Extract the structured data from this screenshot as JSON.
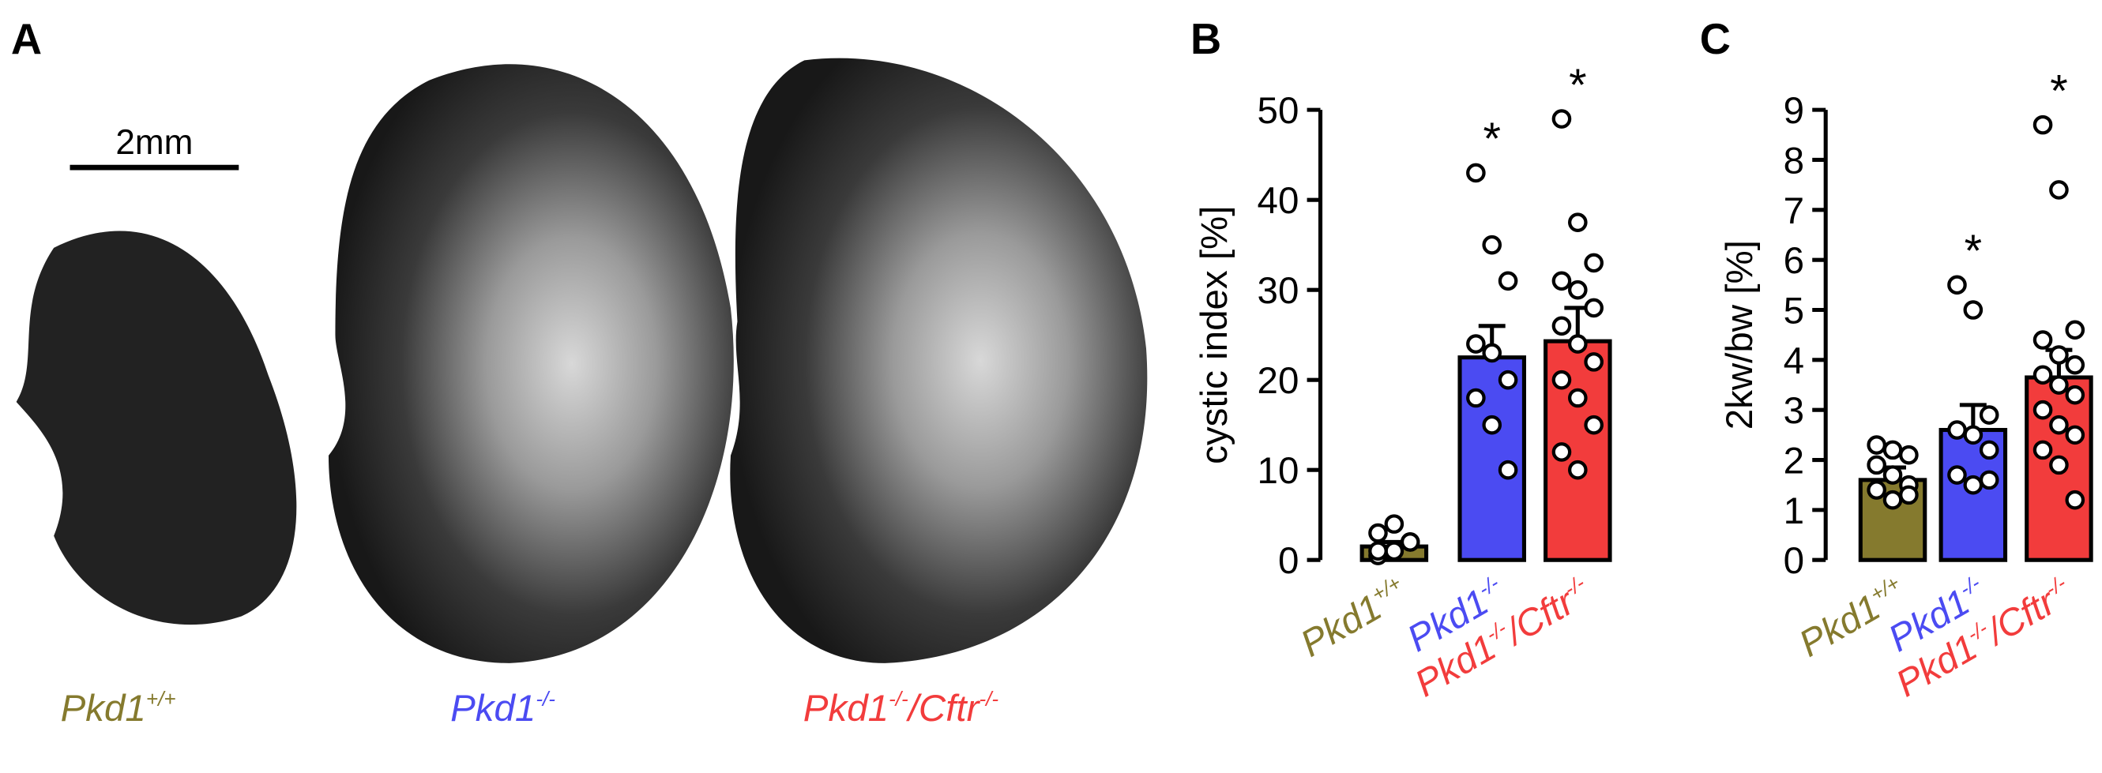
{
  "panel_labels": [
    "A",
    "B",
    "C"
  ],
  "scale_bar": "2mm",
  "chart_data": [
    {
      "type": "bar",
      "ylabel": "cystic index [%]",
      "categories": [
        [
          "Pkd1",
          "+/+"
        ],
        [
          "Pkd1",
          "-/-"
        ],
        [
          "Pkd1",
          "-/-",
          "/Cftr",
          "-/-"
        ]
      ],
      "colors": [
        "#857a2e",
        "#4b4bf2",
        "#f23c3c"
      ],
      "values": [
        1.5,
        22.5,
        24.3
      ],
      "errors": [
        0.5,
        3.5,
        3.7
      ],
      "points": [
        [
          0.5,
          1,
          2,
          3,
          4,
          2,
          1
        ],
        [
          43,
          35,
          31,
          24,
          23,
          20,
          18,
          15,
          10
        ],
        [
          49,
          37.5,
          33,
          31,
          30,
          28,
          26,
          24,
          22,
          20,
          18,
          15,
          12,
          10
        ]
      ],
      "significance": [
        null,
        "*",
        "*"
      ],
      "ylim": [
        0,
        50
      ],
      "yticks": [
        0,
        10,
        20,
        30,
        40,
        50
      ]
    },
    {
      "type": "bar",
      "ylabel": "2kw/bw [%]",
      "categories": [
        [
          "Pkd1",
          "+/+"
        ],
        [
          "Pkd1",
          "-/-"
        ],
        [
          "Pkd1",
          "-/-",
          "/Cftr",
          "-/-"
        ]
      ],
      "colors": [
        "#857a2e",
        "#4b4bf2",
        "#f23c3c"
      ],
      "values": [
        1.6,
        2.6,
        3.65
      ],
      "errors": [
        0.25,
        0.5,
        0.55
      ],
      "points": [
        [
          2.3,
          2.2,
          2.1,
          1.9,
          1.7,
          1.5,
          1.4,
          1.2,
          1.3
        ],
        [
          5.5,
          5.0,
          2.9,
          2.6,
          2.5,
          2.2,
          1.7,
          1.5,
          1.6
        ],
        [
          8.7,
          7.4,
          4.6,
          4.4,
          4.1,
          3.9,
          3.7,
          3.5,
          3.3,
          3.0,
          2.7,
          2.5,
          2.2,
          1.9,
          1.2
        ]
      ],
      "significance": [
        null,
        "*",
        "*"
      ],
      "ylim": [
        0,
        9
      ],
      "yticks": [
        0,
        1,
        2,
        3,
        4,
        5,
        6,
        7,
        8,
        9
      ]
    }
  ]
}
